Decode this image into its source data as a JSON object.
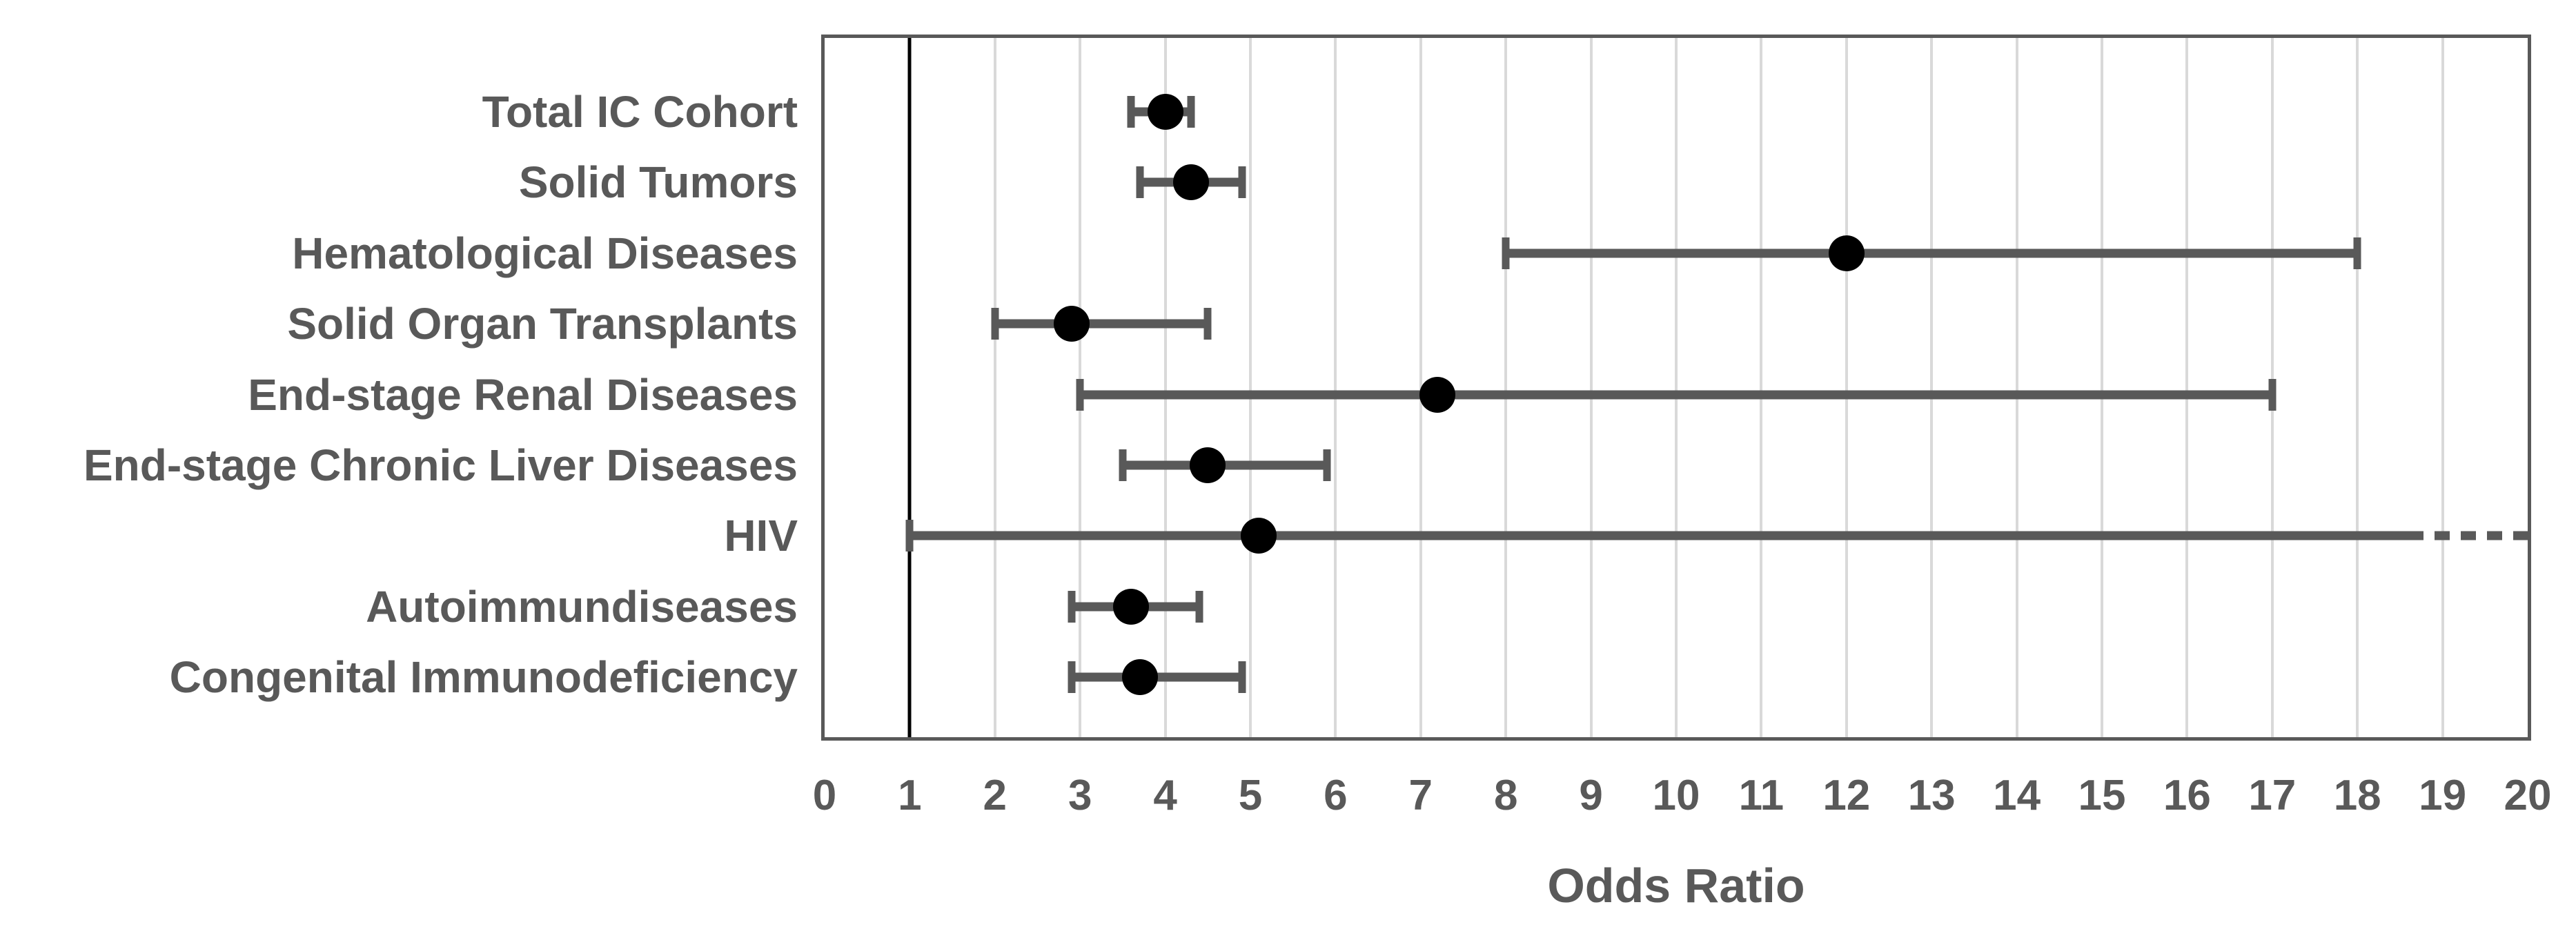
{
  "chart_data": {
    "type": "scatter",
    "subtype": "forest-plot",
    "title": "",
    "xlabel": "Odds Ratio",
    "ylabel": "",
    "xlim": [
      0,
      20
    ],
    "x_ticks": [
      "0",
      "1",
      "2",
      "3",
      "4",
      "5",
      "6",
      "7",
      "8",
      "9",
      "10",
      "11",
      "12",
      "13",
      "14",
      "15",
      "16",
      "17",
      "18",
      "19",
      "20"
    ],
    "grid": true,
    "reference_line_x": 1,
    "legend": "none",
    "rows": [
      {
        "label": "Total IC Cohort",
        "or": 4.0,
        "ci_low": 3.6,
        "ci_high": 4.3,
        "ci_high_truncated": false
      },
      {
        "label": "Solid Tumors",
        "or": 4.3,
        "ci_low": 3.7,
        "ci_high": 4.9,
        "ci_high_truncated": false
      },
      {
        "label": "Hematological Diseases",
        "or": 12.0,
        "ci_low": 8.0,
        "ci_high": 18.0,
        "ci_high_truncated": false
      },
      {
        "label": "Solid Organ Transplants",
        "or": 2.9,
        "ci_low": 2.0,
        "ci_high": 4.5,
        "ci_high_truncated": false
      },
      {
        "label": "End-stage Renal Diseases",
        "or": 7.2,
        "ci_low": 3.0,
        "ci_high": 17.0,
        "ci_high_truncated": false
      },
      {
        "label": "End-stage Chronic Liver Diseases",
        "or": 4.5,
        "ci_low": 3.5,
        "ci_high": 5.9,
        "ci_high_truncated": false
      },
      {
        "label": "HIV",
        "or": 5.1,
        "ci_low": 1.0,
        "ci_high": 20.0,
        "ci_high_truncated": true,
        "solid_until": 18.6
      },
      {
        "label": "Autoimmundiseases",
        "or": 3.6,
        "ci_low": 2.9,
        "ci_high": 4.4,
        "ci_high_truncated": false
      },
      {
        "label": "Congenital Immunodeficiency",
        "or": 3.7,
        "ci_low": 2.9,
        "ci_high": 4.9,
        "ci_high_truncated": false
      }
    ]
  },
  "colors": {
    "background": "#ffffff",
    "marker": "#000000",
    "error_bar": "#595959",
    "gridline": "#d9d9d9",
    "plot_border": "#595959",
    "reference_line": "#000000",
    "text": "#595959"
  }
}
